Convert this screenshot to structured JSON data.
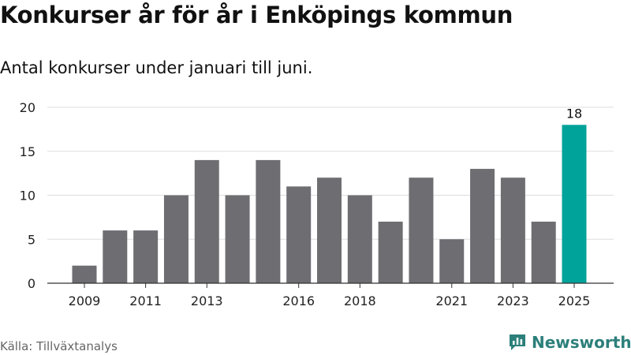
{
  "title": "Konkurser år för år i Enköpings kommun",
  "subtitle": "Antal konkurser under januari till juni.",
  "source": "Källa: Tillväxtanalys",
  "brand": {
    "name": "Newsworthy",
    "icon": "newsworthy-logo-icon",
    "color": "#2c7f7a"
  },
  "colors": {
    "bar": "#6e6d72",
    "highlight": "#00a39a",
    "grid": "#dddddd",
    "axis": "#333333"
  },
  "chart_data": {
    "type": "bar",
    "title": "Konkurser år för år i Enköpings kommun",
    "subtitle": "Antal konkurser under januari till juni.",
    "categories": [
      "2009",
      "2010",
      "2011",
      "2012",
      "2013",
      "2014",
      "2015",
      "2016",
      "2017",
      "2018",
      "2019",
      "2020",
      "2021",
      "2022",
      "2023",
      "2024",
      "2025"
    ],
    "values": [
      2,
      6,
      6,
      10,
      14,
      10,
      14,
      11,
      12,
      10,
      7,
      12,
      5,
      13,
      12,
      7,
      18
    ],
    "x_tick_labels": [
      "2009",
      "2011",
      "2013",
      "2016",
      "2018",
      "2021",
      "2023",
      "2025"
    ],
    "y_ticks": [
      0,
      5,
      10,
      15,
      20
    ],
    "ylim": [
      0,
      20
    ],
    "highlight_category": "2025",
    "data_labels": [
      {
        "category": "2025",
        "text": "18"
      }
    ],
    "xlabel": "",
    "ylabel": "",
    "grid": "horizontal",
    "legend": "none"
  }
}
